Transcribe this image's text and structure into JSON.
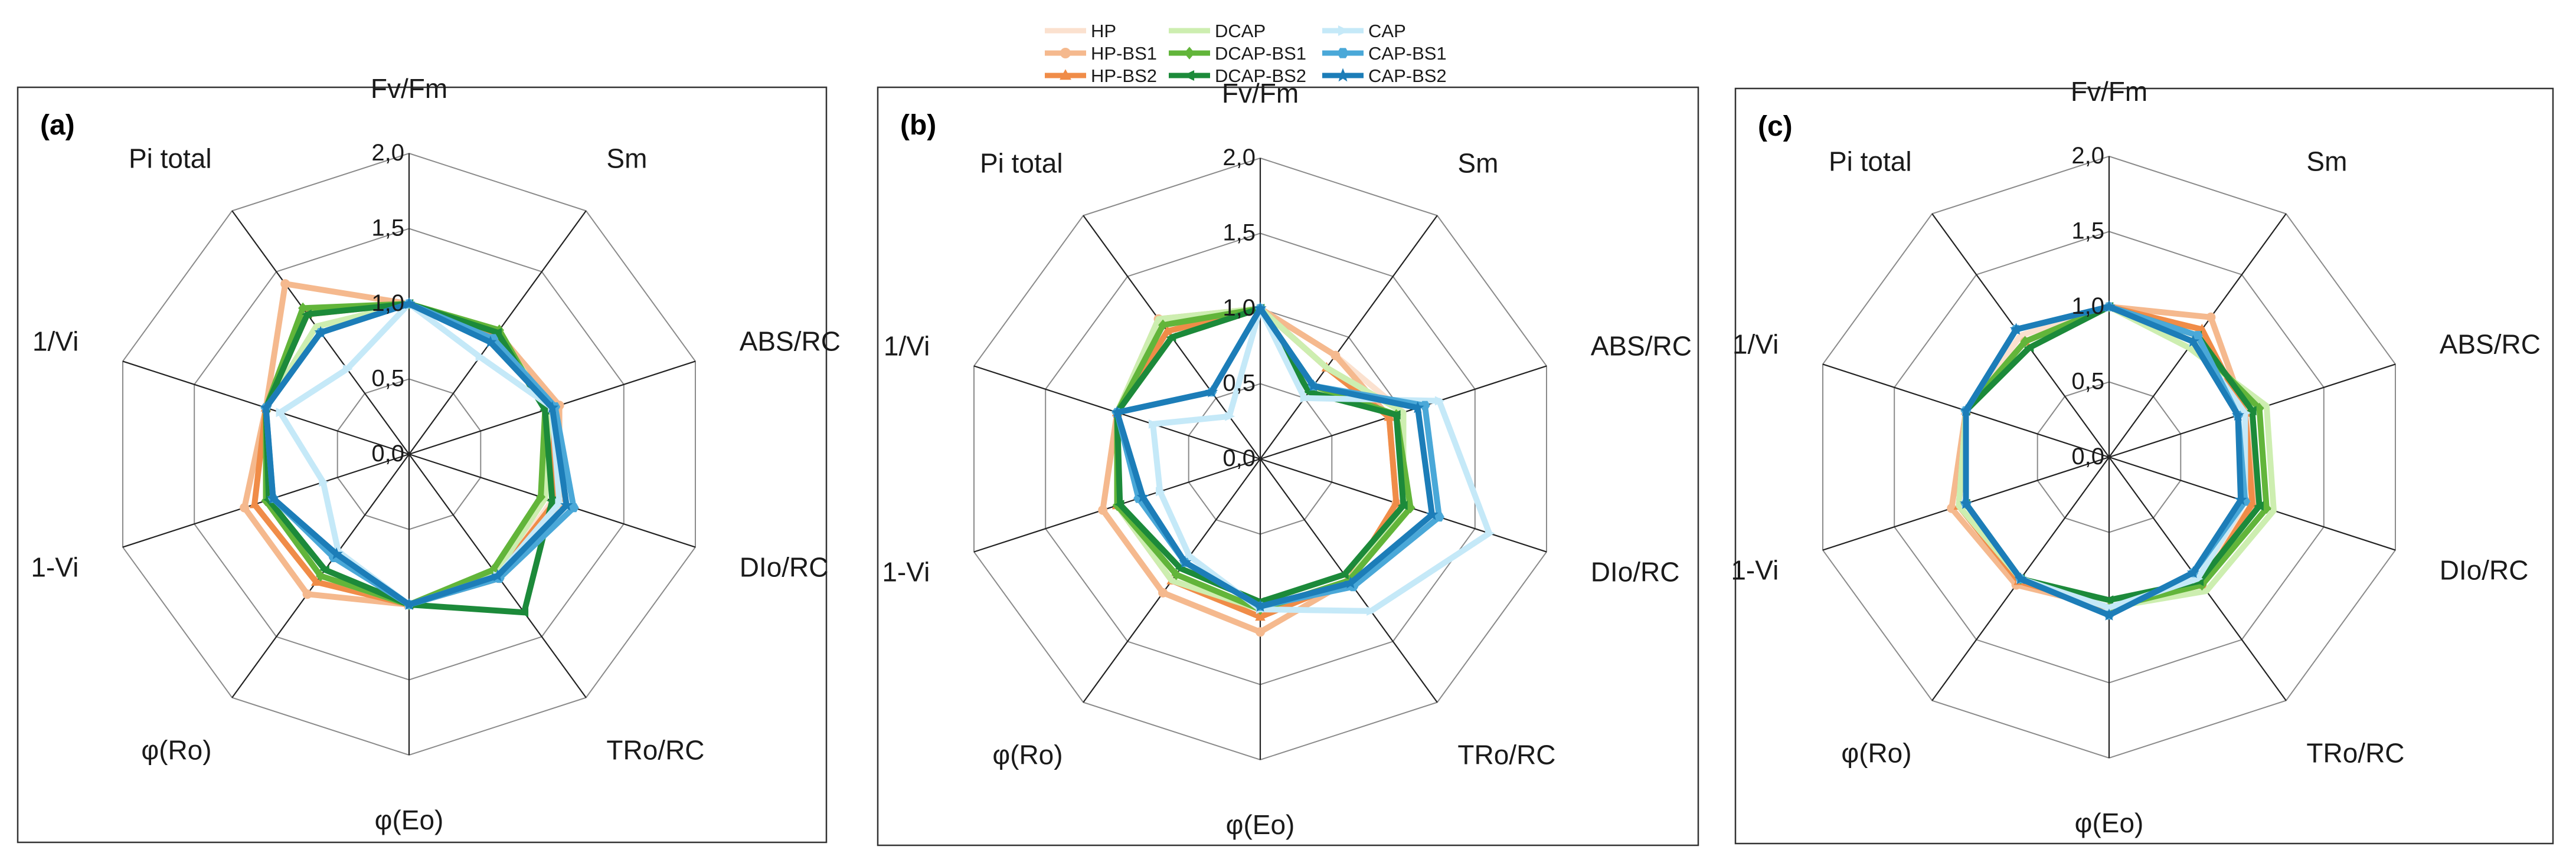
{
  "chart_data": {
    "type": "radar",
    "axes": [
      "Fv/Fm",
      "Sm",
      "ABS/RC",
      "DIo/RC",
      "TRo/RC",
      "φ(Eo)",
      "φ(Ro)",
      "1-Vi",
      "1/Vi",
      "Pi total"
    ],
    "rlim": [
      0,
      2.0
    ],
    "ticks": [
      "0,0",
      "0,5",
      "1,0",
      "1,5",
      "2,0"
    ],
    "tick_values": [
      0,
      0.5,
      1.0,
      1.5,
      2.0
    ],
    "legend_placement": "top-center",
    "series_styles": [
      {
        "name": "HP",
        "color": "#fbe1cf",
        "marker": "none"
      },
      {
        "name": "HP-BS1",
        "color": "#f5b98e",
        "marker": "circle"
      },
      {
        "name": "HP-BS2",
        "color": "#f08c48",
        "marker": "triangle"
      },
      {
        "name": "DCAP",
        "color": "#cdeeb0",
        "marker": "none"
      },
      {
        "name": "DCAP-BS1",
        "color": "#62b53a",
        "marker": "diamond"
      },
      {
        "name": "DCAP-BS2",
        "color": "#1c8a3a",
        "marker": "arrow"
      },
      {
        "name": "CAP",
        "color": "#c5e9f8",
        "marker": "arrow-right"
      },
      {
        "name": "CAP-BS1",
        "color": "#4aa8d8",
        "marker": "hexagon"
      },
      {
        "name": "CAP-BS2",
        "color": "#1c7db8",
        "marker": "star"
      }
    ],
    "panels": [
      {
        "label": "(a)",
        "series": [
          {
            "name": "HP",
            "values": [
              1.0,
              1.0,
              1.0,
              1.0,
              1.0,
              1.0,
              1.0,
              1.0,
              1.0,
              1.0
            ]
          },
          {
            "name": "HP-BS1",
            "values": [
              1.0,
              1.0,
              1.05,
              1.05,
              1.02,
              1.0,
              1.15,
              1.15,
              1.0,
              1.4
            ]
          },
          {
            "name": "HP-BS2",
            "values": [
              1.0,
              0.98,
              1.0,
              1.02,
              1.0,
              1.0,
              1.05,
              1.08,
              1.0,
              1.15
            ]
          },
          {
            "name": "DCAP",
            "values": [
              1.0,
              1.0,
              0.98,
              0.95,
              0.98,
              1.0,
              1.0,
              1.0,
              1.0,
              1.05
            ]
          },
          {
            "name": "DCAP-BS1",
            "values": [
              1.0,
              1.02,
              0.95,
              0.92,
              0.95,
              1.0,
              1.0,
              1.0,
              1.0,
              1.2
            ]
          },
          {
            "name": "DCAP-BS2",
            "values": [
              1.0,
              1.0,
              0.95,
              1.0,
              1.3,
              1.0,
              0.95,
              0.98,
              1.0,
              1.15
            ]
          },
          {
            "name": "CAP",
            "values": [
              1.0,
              0.8,
              1.0,
              1.05,
              1.0,
              1.0,
              0.8,
              0.6,
              0.9,
              0.7
            ]
          },
          {
            "name": "CAP-BS1",
            "values": [
              1.0,
              0.95,
              1.02,
              1.15,
              1.02,
              1.0,
              0.85,
              0.95,
              1.0,
              1.0
            ]
          },
          {
            "name": "CAP-BS2",
            "values": [
              1.0,
              0.92,
              1.0,
              1.1,
              1.0,
              1.0,
              0.82,
              0.95,
              1.0,
              1.0
            ]
          }
        ]
      },
      {
        "label": "(b)",
        "series": [
          {
            "name": "HP",
            "values": [
              1.0,
              0.85,
              1.0,
              1.0,
              1.0,
              1.0,
              1.0,
              1.0,
              1.0,
              1.0
            ]
          },
          {
            "name": "HP-BS1",
            "values": [
              1.0,
              0.85,
              0.9,
              0.95,
              1.0,
              1.15,
              1.1,
              1.1,
              1.0,
              1.15
            ]
          },
          {
            "name": "HP-BS2",
            "values": [
              1.0,
              0.75,
              0.9,
              0.95,
              1.0,
              1.05,
              1.0,
              1.0,
              1.0,
              1.05
            ]
          },
          {
            "name": "DCAP",
            "values": [
              1.0,
              0.75,
              1.0,
              1.0,
              1.0,
              1.0,
              1.0,
              1.0,
              1.0,
              1.15
            ]
          },
          {
            "name": "DCAP-BS1",
            "values": [
              1.0,
              0.6,
              0.95,
              1.05,
              1.0,
              1.0,
              0.95,
              1.0,
              1.0,
              1.1
            ]
          },
          {
            "name": "DCAP-BS2",
            "values": [
              1.0,
              0.55,
              0.95,
              1.0,
              0.95,
              0.95,
              0.9,
              0.98,
              1.0,
              1.0
            ]
          },
          {
            "name": "CAP",
            "values": [
              1.0,
              0.5,
              1.25,
              1.6,
              1.25,
              1.0,
              0.8,
              0.7,
              0.75,
              0.35
            ]
          },
          {
            "name": "CAP-BS1",
            "values": [
              1.0,
              0.6,
              1.15,
              1.25,
              1.05,
              0.98,
              0.85,
              0.85,
              1.0,
              0.55
            ]
          },
          {
            "name": "CAP-BS2",
            "values": [
              1.0,
              0.6,
              1.1,
              1.2,
              1.02,
              0.98,
              0.85,
              0.82,
              1.0,
              0.55
            ]
          }
        ]
      },
      {
        "label": "(c)",
        "series": [
          {
            "name": "HP",
            "values": [
              1.0,
              1.0,
              1.0,
              1.0,
              1.0,
              1.0,
              1.0,
              1.0,
              1.0,
              1.0
            ]
          },
          {
            "name": "HP-BS1",
            "values": [
              1.0,
              1.15,
              0.95,
              1.02,
              1.05,
              1.0,
              1.05,
              1.1,
              1.0,
              0.95
            ]
          },
          {
            "name": "HP-BS2",
            "values": [
              1.0,
              1.05,
              0.95,
              1.0,
              1.05,
              1.0,
              1.02,
              1.05,
              1.0,
              0.95
            ]
          },
          {
            "name": "DCAP",
            "values": [
              1.0,
              0.9,
              1.1,
              1.15,
              1.1,
              1.0,
              1.0,
              1.05,
              1.0,
              0.95
            ]
          },
          {
            "name": "DCAP-BS1",
            "values": [
              1.0,
              0.95,
              1.05,
              1.1,
              1.05,
              1.0,
              1.0,
              1.0,
              1.0,
              0.95
            ]
          },
          {
            "name": "DCAP-BS2",
            "values": [
              1.0,
              1.0,
              1.0,
              1.05,
              1.02,
              0.95,
              1.0,
              1.0,
              1.0,
              0.9
            ]
          },
          {
            "name": "CAP",
            "values": [
              1.0,
              0.95,
              0.95,
              0.95,
              1.0,
              1.0,
              1.0,
              1.0,
              1.0,
              1.05
            ]
          },
          {
            "name": "CAP-BS1",
            "values": [
              1.0,
              1.0,
              0.9,
              0.95,
              0.95,
              1.05,
              1.0,
              1.0,
              1.0,
              1.05
            ]
          },
          {
            "name": "CAP-BS2",
            "values": [
              1.0,
              0.95,
              0.9,
              0.92,
              0.95,
              1.05,
              1.0,
              1.0,
              1.0,
              1.05
            ]
          }
        ]
      }
    ]
  }
}
